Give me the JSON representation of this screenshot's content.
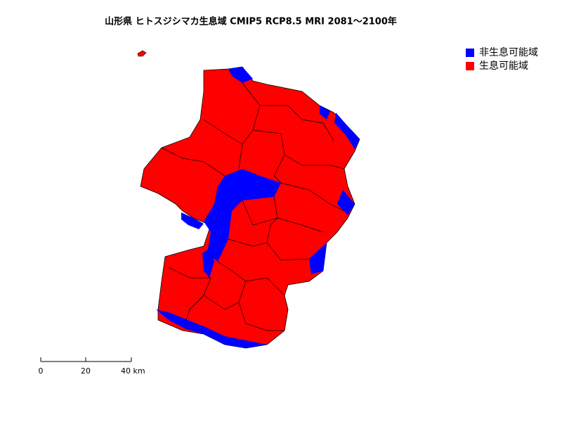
{
  "map": {
    "title": "山形県 ヒトスジシマカ生息域 CMIP5 RCP8.5 MRI 2081〜2100年",
    "legend": [
      {
        "label": "非生息可能域",
        "color": "#0000ff"
      },
      {
        "label": "生息可能域",
        "color": "#ff0000"
      }
    ],
    "scale_bar": {
      "labels": [
        "0",
        "20",
        "40 km"
      ]
    }
  }
}
